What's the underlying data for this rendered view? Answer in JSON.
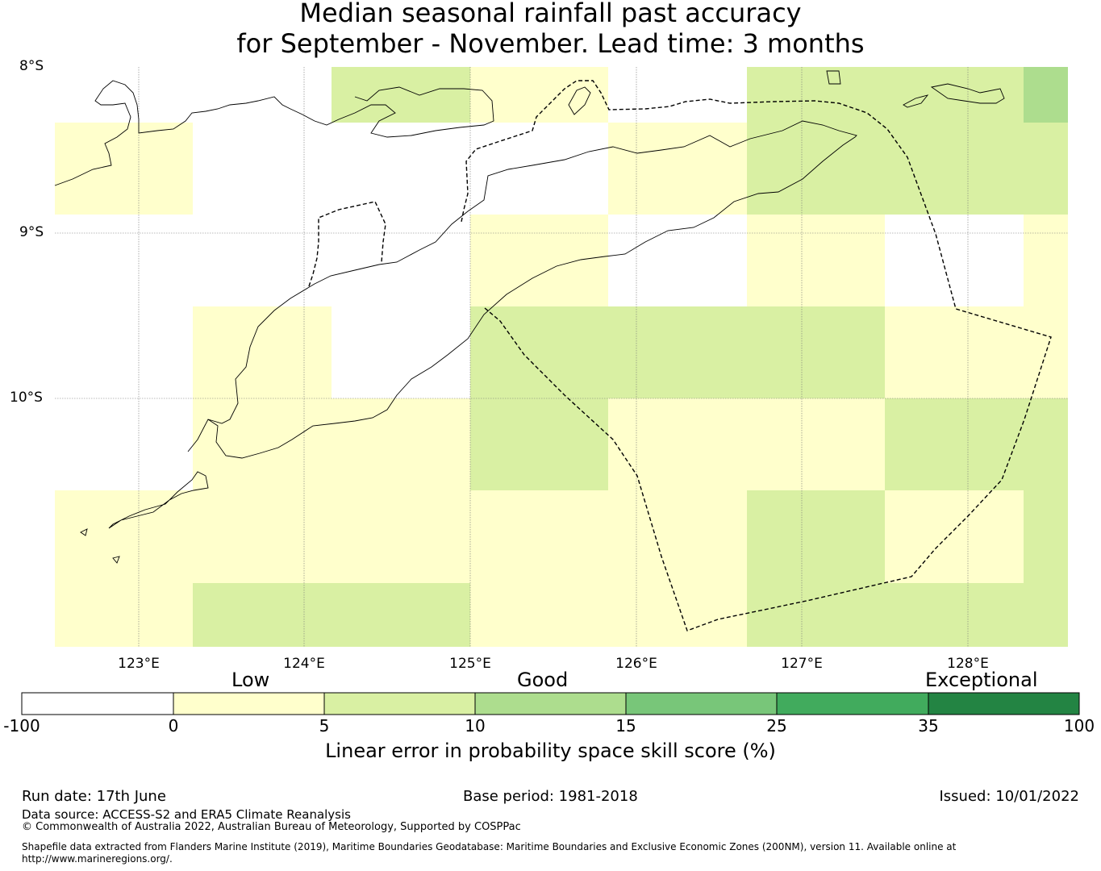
{
  "title": {
    "line1": "Median seasonal rainfall past accuracy",
    "line2": "for September - November. Lead time: 3 months"
  },
  "map": {
    "lat_labels": [
      "8°S",
      "9°S",
      "10°S"
    ],
    "lon_labels": [
      "123°E",
      "124°E",
      "125°E",
      "126°E",
      "127°E",
      "128°E"
    ],
    "extent": {
      "lon": [
        122.5,
        128.6
      ],
      "lat": [
        -11.5,
        -8.0
      ]
    },
    "grid_colors": {
      "white": "#ffffff",
      "low": "#ffffcc",
      "good": "#d9f0a3",
      "good_plus": "#addd8e"
    }
  },
  "colorbar": {
    "categories": [
      "Low",
      "Good",
      "Exceptional"
    ],
    "tick_labels": [
      "-100",
      "0",
      "5",
      "10",
      "15",
      "25",
      "35",
      "100"
    ],
    "colors": [
      "#ffffff",
      "#ffffcc",
      "#d9f0a3",
      "#addd8e",
      "#78c679",
      "#41ab5d",
      "#238443"
    ],
    "title": "Linear error in probability space skill score (%)"
  },
  "footer": {
    "run_date": "Run date: 17th June",
    "base_period": "Base period: 1981-2018",
    "issued": "Issued: 10/01/2022",
    "data_source": "Data source: ACCESS-S2 and ERA5 Climate Reanalysis",
    "copyright": "© Commonwealth of Australia 2022, Australian Bureau of Meteorology, Supported by COSPPac",
    "shapefile": "Shapefile data extracted from Flanders Marine Institute (2019), Maritime Boundaries Geodatabase: Maritime Boundaries and Exclusive Economic Zones (200NM), version 11. Available online at http://www.marineregions.org/."
  }
}
